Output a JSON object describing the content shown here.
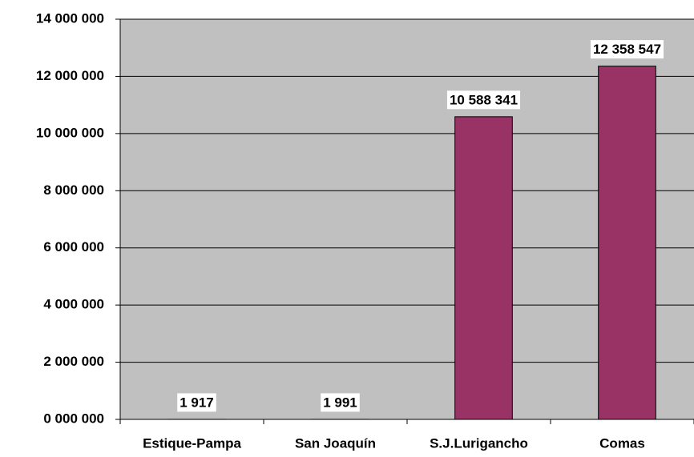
{
  "chart_data": {
    "type": "bar",
    "categories": [
      "Estique-Pampa",
      "San Joaquín",
      "S.J.Lurigancho",
      "Comas"
    ],
    "values": [
      1917,
      1991,
      10588341,
      12358547
    ],
    "value_labels": [
      "1 917",
      "1 991",
      "10 588 341",
      "12 358 547"
    ],
    "color": "#993366",
    "ylim": [
      0,
      14000000
    ],
    "yticks": [
      {
        "value": 0,
        "label": "0 000 000"
      },
      {
        "value": 2000000,
        "label": "2 000 000"
      },
      {
        "value": 4000000,
        "label": "4 000 000"
      },
      {
        "value": 6000000,
        "label": "6 000 000"
      },
      {
        "value": 8000000,
        "label": "8 000 000"
      },
      {
        "value": 10000000,
        "label": "10 000 000"
      },
      {
        "value": 12000000,
        "label": "12 000 000"
      },
      {
        "value": 14000000,
        "label": "14 000 000"
      }
    ],
    "grid": true
  }
}
